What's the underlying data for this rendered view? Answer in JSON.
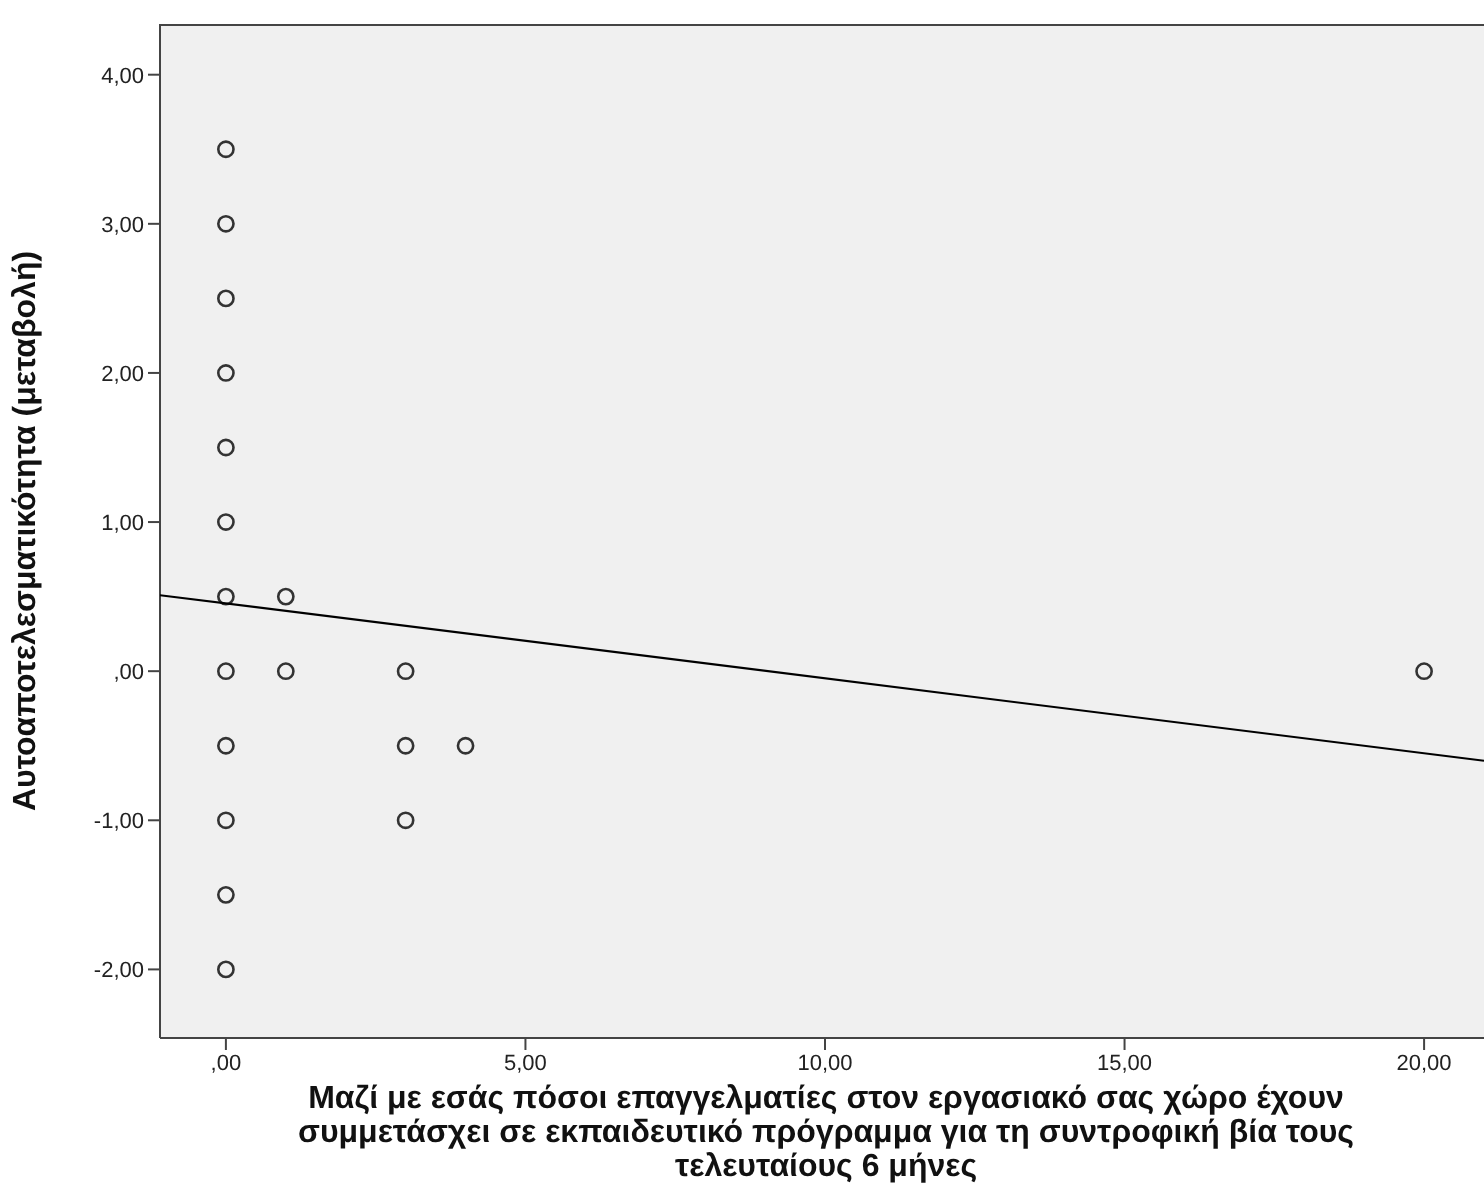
{
  "chart_data": {
    "type": "scatter",
    "xlabel": "Μαζί με εσάς πόσοι επαγγελματίες στον εργασιακό σας χώρο έχουν συμμετάσχει σε εκπαιδευτικό πρόγραμμα για τη συντροφική βία τους τελευταίους 6 μήνες",
    "ylabel": "Αυτοαποτελεσματικότητα (μεταβολή)",
    "xlim": [
      -1.1,
      21
    ],
    "ylim": [
      -2.46,
      4.34
    ],
    "xticks": [
      {
        "value": 0,
        "label": ",00"
      },
      {
        "value": 5,
        "label": "5,00"
      },
      {
        "value": 10,
        "label": "10,00"
      },
      {
        "value": 15,
        "label": "15,00"
      },
      {
        "value": 20,
        "label": "20,00"
      }
    ],
    "yticks": [
      {
        "value": -2,
        "label": "-2,00"
      },
      {
        "value": -1,
        "label": "-1,00"
      },
      {
        "value": 0,
        "label": ",00"
      },
      {
        "value": 1,
        "label": "1,00"
      },
      {
        "value": 2,
        "label": "2,00"
      },
      {
        "value": 3,
        "label": "3,00"
      },
      {
        "value": 4,
        "label": "4,00"
      }
    ],
    "marker": "circle",
    "series": [
      {
        "color": "#333333",
        "x": [
          0,
          0,
          0,
          0,
          0,
          0,
          0,
          0,
          0,
          0,
          0,
          0,
          1,
          1,
          3,
          3,
          3,
          4,
          20
        ],
        "values": [
          3.5,
          3,
          2.5,
          2,
          1.5,
          1,
          0.5,
          0,
          -0.5,
          -1,
          -1.5,
          -2,
          0.5,
          0,
          0,
          -0.5,
          -1,
          -0.5,
          0
        ]
      },
      {
        "type": "line",
        "marker": "none",
        "color": "#000000",
        "x": [
          -1.1,
          21
        ],
        "values": [
          0.51,
          -0.6
        ]
      }
    ]
  }
}
